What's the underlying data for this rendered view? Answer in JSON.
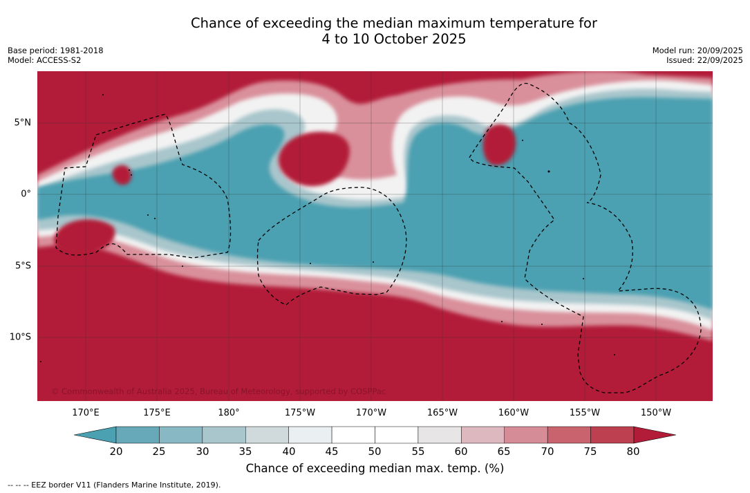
{
  "title": {
    "line1": "Chance of exceeding the median maximum temperature for",
    "line2": "4 to 10 October 2025"
  },
  "meta_left": {
    "base_period": "Base period: 1981-2018",
    "model": "Model: ACCESS-S2"
  },
  "meta_right": {
    "model_run": "Model run: 20/09/2025",
    "issued": "Issued: 22/09/2025"
  },
  "map": {
    "copyright": "© Commonwealth of Australia 2025, Bureau of Meteorology, supported by COSPPac",
    "lon_labels": [
      "170°E",
      "175°E",
      "180°",
      "175°W",
      "170°W",
      "165°W",
      "160°W",
      "155°W",
      "150°W"
    ],
    "lat_labels": [
      "5°N",
      "0°",
      "5°S",
      "10°S"
    ],
    "land_color": "#b21c39",
    "cool_color": "#4ba0b1"
  },
  "colorbar": {
    "ticks": [
      "20",
      "25",
      "30",
      "35",
      "40",
      "45",
      "50",
      "55",
      "60",
      "65",
      "70",
      "75",
      "80"
    ],
    "colors": [
      "#4ba0b1",
      "#67a8b9",
      "#87b8c3",
      "#a9c6cc",
      "#d0d9dc",
      "#eaeff1",
      "#ffffff",
      "#ffffff",
      "#e8e5e6",
      "#ddb9bf",
      "#d58c96",
      "#c9646f",
      "#bd4050",
      "#b21c39"
    ],
    "label": "Chance of exceeding median max. temp. (%)"
  },
  "footnote": "--  --  -- EEZ border V11 (Flanders Marine Institute, 2019)."
}
